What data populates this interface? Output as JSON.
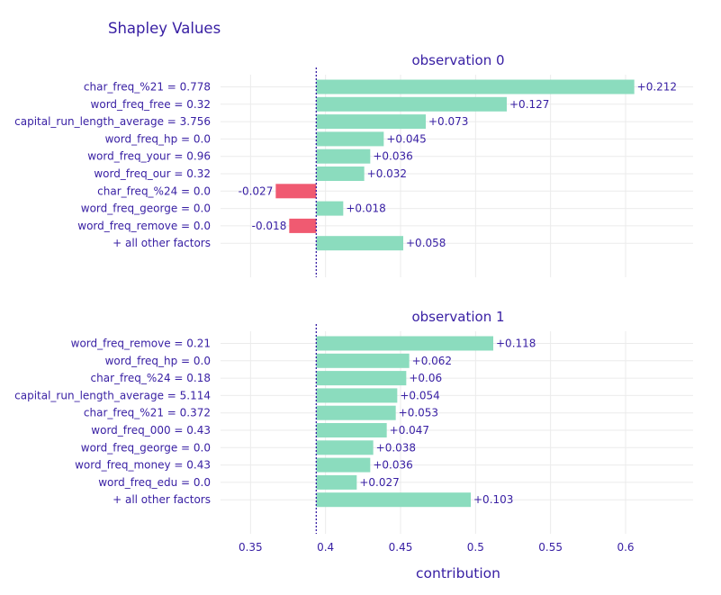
{
  "chart_data": {
    "type": "bar",
    "orientation": "horizontal",
    "title": "Shapley Values",
    "xlabel": "contribution",
    "baseline": 0.3938,
    "xlim": [
      0.33,
      0.645
    ],
    "xticks": [
      0.35,
      0.4,
      0.45,
      0.5,
      0.55,
      0.6
    ],
    "xtick_labels": [
      "0.35",
      "0.4",
      "0.45",
      "0.5",
      "0.55",
      "0.6"
    ],
    "colors": {
      "positive": "#8bdcbe",
      "negative": "#f05a71",
      "baseline": "#371ea3",
      "text": "#371ea3"
    },
    "panels": [
      {
        "title": "observation 0",
        "categories": [
          "char_freq_%21 = 0.778",
          "word_freq_free = 0.32",
          "capital_run_length_average = 3.756",
          "word_freq_hp = 0.0",
          "word_freq_your = 0.96",
          "word_freq_our = 0.32",
          "char_freq_%24 = 0.0",
          "word_freq_george = 0.0",
          "word_freq_remove = 0.0",
          "+ all other factors"
        ],
        "values": [
          0.212,
          0.127,
          0.073,
          0.045,
          0.036,
          0.032,
          -0.027,
          0.018,
          -0.018,
          0.058
        ],
        "labels": [
          "+0.212",
          "+0.127",
          "+0.073",
          "+0.045",
          "+0.036",
          "+0.032",
          "-0.027",
          "+0.018",
          "-0.018",
          "+0.058"
        ]
      },
      {
        "title": "observation 1",
        "categories": [
          "word_freq_remove = 0.21",
          "word_freq_hp = 0.0",
          "char_freq_%24 = 0.18",
          "capital_run_length_average = 5.114",
          "char_freq_%21 = 0.372",
          "word_freq_000 = 0.43",
          "word_freq_george = 0.0",
          "word_freq_money = 0.43",
          "word_freq_edu = 0.0",
          "+ all other factors"
        ],
        "values": [
          0.118,
          0.062,
          0.06,
          0.054,
          0.053,
          0.047,
          0.038,
          0.036,
          0.027,
          0.103
        ],
        "labels": [
          "+0.118",
          "+0.062",
          "+0.06",
          "+0.054",
          "+0.053",
          "+0.047",
          "+0.038",
          "+0.036",
          "+0.027",
          "+0.103"
        ]
      }
    ]
  }
}
